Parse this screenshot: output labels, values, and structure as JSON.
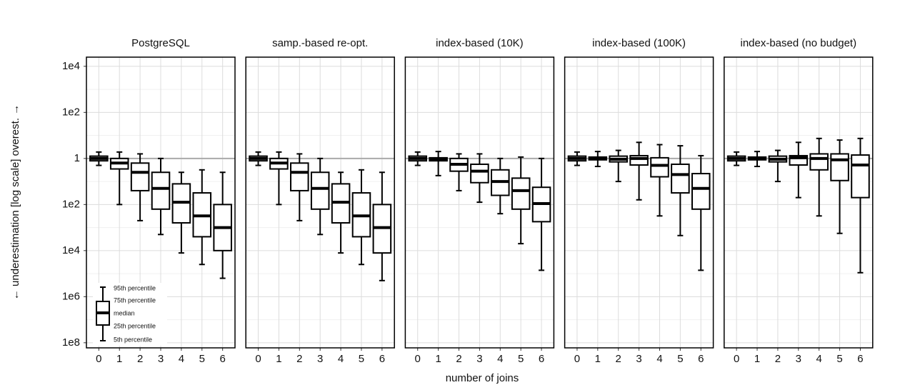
{
  "chart_data": [
    {
      "type": "box",
      "title": "PostgreSQL",
      "categories": [
        "0",
        "1",
        "2",
        "3",
        "4",
        "5",
        "6"
      ],
      "p95": [
        1.9,
        1.9,
        1.58,
        1,
        0.25,
        0.32,
        0.25
      ],
      "q3": [
        1.26,
        1,
        0.63,
        0.25,
        0.079,
        0.032,
        0.01
      ],
      "median": [
        1,
        0.63,
        0.25,
        0.05,
        0.0126,
        0.0032,
        0.001
      ],
      "q1": [
        0.79,
        0.35,
        0.04,
        0.0063,
        0.0016,
        0.0004,
        0.0001
      ],
      "p5": [
        0.5,
        0.01,
        0.002,
        0.0005,
        7.9e-05,
        2.5e-05,
        6.3e-06
      ]
    },
    {
      "type": "box",
      "title": "samp.-based re-opt.",
      "categories": [
        "0",
        "1",
        "2",
        "3",
        "4",
        "5",
        "6"
      ],
      "p95": [
        1.9,
        1.9,
        1.58,
        1,
        0.25,
        0.32,
        0.25
      ],
      "q3": [
        1.26,
        1,
        0.63,
        0.25,
        0.079,
        0.032,
        0.01
      ],
      "median": [
        1,
        0.63,
        0.25,
        0.05,
        0.0126,
        0.0032,
        0.001
      ],
      "q1": [
        0.79,
        0.35,
        0.04,
        0.0063,
        0.0016,
        0.0004,
        7.9e-05
      ],
      "p5": [
        0.5,
        0.01,
        0.002,
        0.0005,
        7.9e-05,
        2.5e-05,
        5e-06
      ]
    },
    {
      "type": "box",
      "title": "index-based (10K)",
      "categories": [
        "0",
        "1",
        "2",
        "3",
        "4",
        "5",
        "6"
      ],
      "p95": [
        1.9,
        2,
        1.58,
        1.58,
        1,
        1.15,
        1
      ],
      "q3": [
        1.26,
        1.07,
        1,
        0.56,
        0.32,
        0.14,
        0.056
      ],
      "median": [
        1,
        0.93,
        0.56,
        0.28,
        0.1,
        0.04,
        0.011
      ],
      "q1": [
        0.79,
        0.79,
        0.28,
        0.089,
        0.025,
        0.0063,
        0.0018
      ],
      "p5": [
        0.5,
        0.18,
        0.04,
        0.0126,
        0.004,
        0.0002,
        1.4e-05
      ]
    },
    {
      "type": "box",
      "title": "index-based (100K)",
      "categories": [
        "0",
        "1",
        "2",
        "3",
        "4",
        "5",
        "6"
      ],
      "p95": [
        1.9,
        2,
        2.24,
        5,
        3.98,
        3.55,
        1.32
      ],
      "q3": [
        1.26,
        1.15,
        1.26,
        1.32,
        1.07,
        0.56,
        0.22
      ],
      "median": [
        1,
        1,
        0.93,
        1,
        0.5,
        0.2,
        0.05
      ],
      "q1": [
        0.79,
        0.87,
        0.71,
        0.52,
        0.16,
        0.032,
        0.0063
      ],
      "p5": [
        0.5,
        0.45,
        0.1,
        0.016,
        0.0032,
        0.00045,
        1.4e-05
      ]
    },
    {
      "type": "box",
      "title": "index-based (no budget)",
      "categories": [
        "0",
        "1",
        "2",
        "3",
        "4",
        "5",
        "6"
      ],
      "p95": [
        1.9,
        2,
        2.24,
        5,
        7.4,
        6.3,
        7.4
      ],
      "q3": [
        1.26,
        1.15,
        1.26,
        1.32,
        1.58,
        1.58,
        1.41
      ],
      "median": [
        1,
        1,
        0.93,
        1.07,
        1,
        0.87,
        0.52
      ],
      "q1": [
        0.79,
        0.87,
        0.71,
        0.52,
        0.32,
        0.11,
        0.02
      ],
      "p5": [
        0.5,
        0.45,
        0.1,
        0.02,
        0.0032,
        0.00056,
        1.1e-05
      ]
    }
  ],
  "axes": {
    "x_label": "number of joins",
    "y_label": "← underestimation  [log scale]  overest. →",
    "log": true,
    "ylim": [
      6e-09,
      25000
    ],
    "yticks": [
      {
        "value": 10000,
        "label": "1e4"
      },
      {
        "value": 100,
        "label": "1e2"
      },
      1,
      {
        "value": 0.01,
        "label": "1e2"
      },
      {
        "value": 0.0001,
        "label": "1e4"
      },
      {
        "value": 1e-06,
        "label": "1e6"
      },
      {
        "value": 1e-08,
        "label": "1e8"
      }
    ],
    "minor_yticks": [
      1000,
      10,
      0.1,
      0.001,
      1e-05,
      1e-07
    ],
    "reference_line": 1,
    "grid": true
  },
  "legend": {
    "labels": [
      "95th percentile",
      "75th percentile",
      "median",
      "25th percentile",
      "5th percentile"
    ]
  }
}
